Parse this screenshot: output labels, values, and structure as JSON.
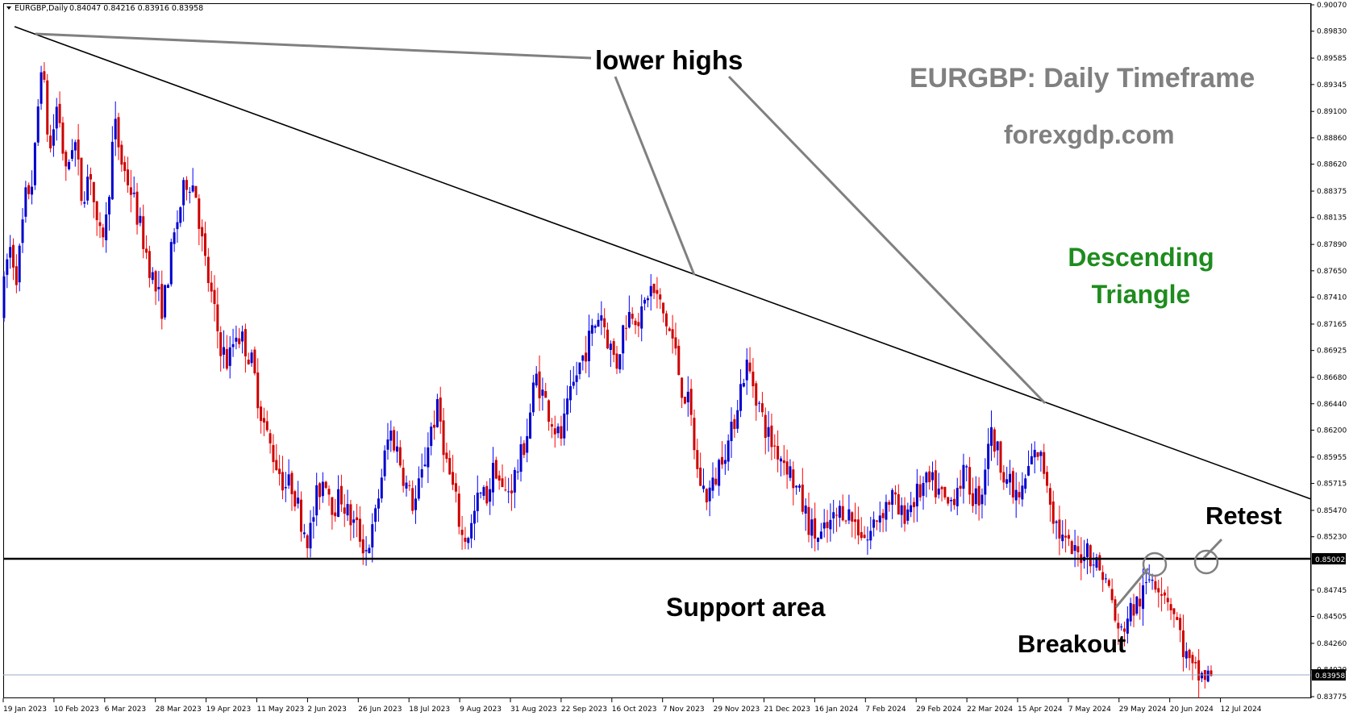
{
  "header": {
    "symbol": "EURGBP,Daily",
    "ohlc": "0.84047 0.84216 0.83916 0.83958"
  },
  "chart_data": {
    "type": "candlestick",
    "title": "EURGBP: Daily Timeframe",
    "watermark": "forexgdp.com",
    "pattern_label": [
      "Descending",
      "Triangle"
    ],
    "ylim": [
      0.83775,
      0.9007
    ],
    "y_ticks": [
      "0.90070",
      "0.89830",
      "0.89585",
      "0.89345",
      "0.89100",
      "0.88860",
      "0.88620",
      "0.88375",
      "0.88135",
      "0.87890",
      "0.87650",
      "0.87410",
      "0.87165",
      "0.86925",
      "0.86680",
      "0.86440",
      "0.86200",
      "0.85955",
      "0.85715",
      "0.85470",
      "0.85230",
      "0.84745",
      "0.84505",
      "0.84260",
      "0.84020",
      "0.83775"
    ],
    "x_ticks": [
      "19 Jan 2023",
      "10 Feb 2023",
      "6 Mar 2023",
      "28 Mar 2023",
      "19 Apr 2023",
      "11 May 2023",
      "2 Jun 2023",
      "26 Jun 2023",
      "18 Jul 2023",
      "9 Aug 2023",
      "31 Aug 2023",
      "22 Sep 2023",
      "16 Oct 2023",
      "7 Nov 2023",
      "29 Nov 2023",
      "21 Dec 2023",
      "16 Jan 2024",
      "7 Feb 2024",
      "29 Feb 2024",
      "22 Mar 2024",
      "15 Apr 2024",
      "7 May 2024",
      "29 May 2024",
      "20 Jun 2024",
      "12 Jul 2024"
    ],
    "support_level": "0.85002",
    "current_price": "0.83958",
    "colors": {
      "bull": "#0000ff",
      "bear": "#ff0000",
      "bull_body": "#0000cc",
      "bear_body": "#cc0000",
      "title": "#808080",
      "pattern": "#1e8c1e"
    },
    "annotations": {
      "lower_highs": "lower highs",
      "support_area": "Support area",
      "breakout": "Breakout",
      "retest": "Retest"
    },
    "price_path": [
      [
        0.8725,
        0.879,
        0.876,
        0.883,
        0.885,
        0.896
      ],
      [
        0.887,
        0.892,
        0.885,
        0.889,
        0.883,
        0.886
      ],
      [
        0.879,
        0.881,
        0.89,
        0.886,
        0.884,
        0.881
      ],
      [
        0.878,
        0.875,
        0.873,
        0.878,
        0.882,
        0.885
      ],
      [
        0.884,
        0.878,
        0.874,
        0.87,
        0.868,
        0.871
      ],
      [
        0.87,
        0.868,
        0.864,
        0.861,
        0.859,
        0.857
      ],
      [
        0.857,
        0.854,
        0.852,
        0.856,
        0.858,
        0.855
      ],
      [
        0.856,
        0.854,
        0.853,
        0.851,
        0.853,
        0.858
      ],
      [
        0.862,
        0.86,
        0.857,
        0.855,
        0.858,
        0.862
      ],
      [
        0.864,
        0.859,
        0.856,
        0.852,
        0.853,
        0.856
      ],
      [
        0.856,
        0.859,
        0.856,
        0.857,
        0.859,
        0.862
      ],
      [
        0.867,
        0.865,
        0.863,
        0.861,
        0.864,
        0.867
      ],
      [
        0.869,
        0.871,
        0.873,
        0.87,
        0.868,
        0.872
      ],
      [
        0.873,
        0.872,
        0.875,
        0.874,
        0.872,
        0.87
      ],
      [
        0.866,
        0.864,
        0.858,
        0.856,
        0.857,
        0.86
      ],
      [
        0.861,
        0.865,
        0.868,
        0.866,
        0.863,
        0.861
      ],
      [
        0.86,
        0.859,
        0.857,
        0.855,
        0.853,
        0.852
      ],
      [
        0.853,
        0.854,
        0.855,
        0.854,
        0.853,
        0.852
      ],
      [
        0.854,
        0.855,
        0.856,
        0.854,
        0.855,
        0.856
      ],
      [
        0.857,
        0.857,
        0.856,
        0.855,
        0.857,
        0.858
      ],
      [
        0.856,
        0.856,
        0.862,
        0.86,
        0.858,
        0.856
      ],
      [
        0.856,
        0.859,
        0.86,
        0.858,
        0.854,
        0.852
      ],
      [
        0.851,
        0.8505,
        0.8515,
        0.85,
        0.849,
        0.847
      ],
      [
        0.843,
        0.845,
        0.846,
        0.847,
        0.849,
        0.848
      ],
      [
        0.847,
        0.845,
        0.842,
        0.84,
        0.8396,
        0.8396
      ]
    ]
  }
}
